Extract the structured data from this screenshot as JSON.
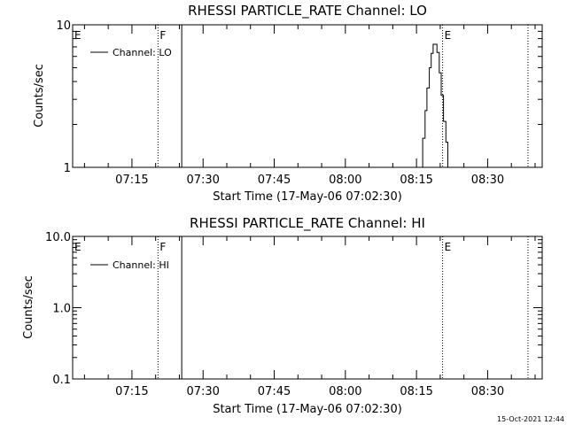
{
  "footer": {
    "timestamp": "15-Oct-2021 12:44"
  },
  "chart_data": [
    {
      "type": "line",
      "title": "RHESSI PARTICLE_RATE Channel: LO",
      "xlabel": "Start Time (17-May-06 07:02:30)",
      "ylabel": "Counts/sec",
      "yscale": "log",
      "xlim_minutes": [
        0,
        99
      ],
      "ylim": [
        1,
        10
      ],
      "xticks": [
        {
          "minutes": 12.5,
          "label": "07:15"
        },
        {
          "minutes": 27.5,
          "label": "07:30"
        },
        {
          "minutes": 42.5,
          "label": "07:45"
        },
        {
          "minutes": 57.5,
          "label": "08:00"
        },
        {
          "minutes": 72.5,
          "label": "08:15"
        },
        {
          "minutes": 87.5,
          "label": "08:30"
        }
      ],
      "yticks": [
        {
          "value": 1,
          "label": "1"
        },
        {
          "value": 10,
          "label": "10"
        }
      ],
      "minor_yticks": [
        2,
        3,
        4,
        5,
        6,
        7,
        8,
        9
      ],
      "series": [
        {
          "name": "Channel: LO",
          "x": [
            73.3,
            73.8,
            74.3,
            74.7,
            75.2,
            75.6,
            76.0,
            76.4,
            76.8,
            77.3,
            77.7,
            78.2,
            78.7,
            79.1
          ],
          "y": [
            1.0,
            1.6,
            2.5,
            3.6,
            5.0,
            6.3,
            7.3,
            7.3,
            6.4,
            4.6,
            3.2,
            2.1,
            1.5,
            1.0
          ]
        }
      ],
      "legend": "top-left",
      "flags": [
        {
          "label": "E",
          "minutes": 0,
          "style": "dotted"
        },
        {
          "label": "F",
          "minutes": 18.0,
          "style": "dotted"
        },
        {
          "label": "",
          "minutes": 23.0,
          "style": "solid"
        },
        {
          "label": "E",
          "minutes": 78.0,
          "style": "dotted"
        },
        {
          "label": "",
          "minutes": 96.0,
          "style": "dotted"
        }
      ]
    },
    {
      "type": "line",
      "title": "RHESSI PARTICLE_RATE Channel: HI",
      "xlabel": "Start Time (17-May-06 07:02:30)",
      "ylabel": "Counts/sec",
      "yscale": "log",
      "xlim_minutes": [
        0,
        99
      ],
      "ylim": [
        0.1,
        10
      ],
      "xticks": [
        {
          "minutes": 12.5,
          "label": "07:15"
        },
        {
          "minutes": 27.5,
          "label": "07:30"
        },
        {
          "minutes": 42.5,
          "label": "07:45"
        },
        {
          "minutes": 57.5,
          "label": "08:00"
        },
        {
          "minutes": 72.5,
          "label": "08:15"
        },
        {
          "minutes": 87.5,
          "label": "08:30"
        }
      ],
      "yticks": [
        {
          "value": 0.1,
          "label": "0.1"
        },
        {
          "value": 1,
          "label": "1.0"
        },
        {
          "value": 10,
          "label": "10.0"
        }
      ],
      "minor_yticks": [
        0.2,
        0.3,
        0.4,
        0.5,
        0.6,
        0.7,
        0.8,
        0.9,
        2,
        3,
        4,
        5,
        6,
        7,
        8,
        9
      ],
      "series": [
        {
          "name": "Channel: HI",
          "x": [],
          "y": []
        }
      ],
      "legend": "top-left",
      "flags": [
        {
          "label": "E",
          "minutes": 0,
          "style": "dotted"
        },
        {
          "label": "F",
          "minutes": 18.0,
          "style": "dotted"
        },
        {
          "label": "",
          "minutes": 23.0,
          "style": "solid"
        },
        {
          "label": "E",
          "minutes": 78.0,
          "style": "dotted"
        },
        {
          "label": "",
          "minutes": 96.0,
          "style": "dotted"
        }
      ]
    }
  ]
}
